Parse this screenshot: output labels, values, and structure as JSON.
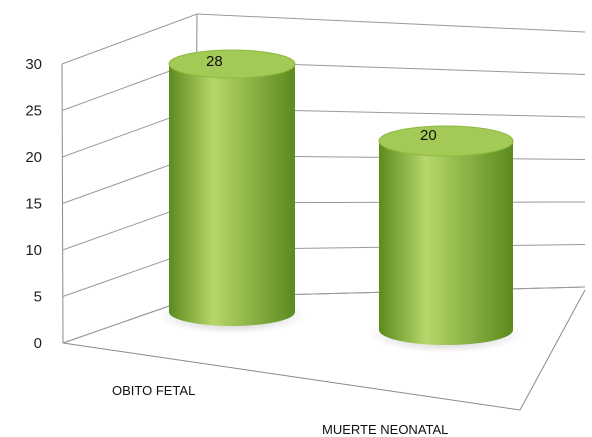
{
  "chart_data": {
    "type": "bar",
    "style": "3d-cylinder",
    "categories": [
      "OBITO FETAL",
      "MUERTE NEONATAL"
    ],
    "values": [
      28,
      20
    ],
    "data_labels": [
      "28",
      "20"
    ],
    "ylim": [
      0,
      30
    ],
    "yticks": [
      "0",
      "5",
      "10",
      "15",
      "20",
      "25",
      "30"
    ],
    "grid": true,
    "legend": "none",
    "colors": {
      "bar_light": "#b6d66a",
      "bar_mid": "#8dba3f",
      "bar_dark": "#5c8a1e",
      "bar_top": "#a3c956",
      "grid": "#9a9a9a"
    }
  }
}
